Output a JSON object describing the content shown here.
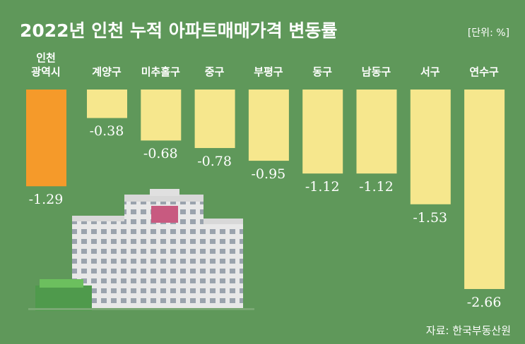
{
  "chart_data": {
    "type": "bar",
    "title": "2022년 인천 누적 아파트매매가격 변동률",
    "unit_note": "[단위: %]",
    "source": "자료: 한국부동산원",
    "categories": [
      "인천\n광역시",
      "계양구",
      "미추홀구",
      "중구",
      "부평구",
      "동구",
      "남동구",
      "서구",
      "연수구"
    ],
    "values": [
      -1.29,
      -0.38,
      -0.68,
      -0.78,
      -0.95,
      -1.12,
      -1.12,
      -1.53,
      -2.66
    ],
    "colors": [
      "#f59a2a",
      "#f6e78d",
      "#f6e78d",
      "#f6e78d",
      "#f6e78d",
      "#f6e78d",
      "#f6e78d",
      "#f6e78d",
      "#f6e78d"
    ],
    "background": "#5f985a"
  }
}
